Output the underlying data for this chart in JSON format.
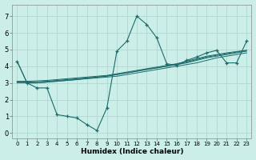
{
  "xlabel": "Humidex (Indice chaleur)",
  "bg_color": "#cceee8",
  "grid_color": "#b0d8d0",
  "line_color": "#1a6b6b",
  "xlim": [
    -0.5,
    23.5
  ],
  "ylim": [
    -0.3,
    7.7
  ],
  "xticks": [
    0,
    1,
    2,
    3,
    4,
    5,
    6,
    7,
    8,
    9,
    10,
    11,
    12,
    13,
    14,
    15,
    16,
    17,
    18,
    19,
    20,
    21,
    22,
    23
  ],
  "yticks": [
    0,
    1,
    2,
    3,
    4,
    5,
    6,
    7
  ],
  "main_series": [
    4.3,
    3.0,
    2.7,
    2.7,
    1.1,
    1.0,
    0.9,
    0.5,
    0.15,
    1.5,
    4.9,
    5.5,
    7.0,
    6.5,
    5.7,
    4.15,
    4.05,
    4.35,
    4.55,
    4.8,
    4.95,
    4.2,
    4.2,
    5.5
  ],
  "trend_lines": [
    [
      3.0,
      3.0,
      3.0,
      3.05,
      3.1,
      3.15,
      3.2,
      3.25,
      3.3,
      3.35,
      3.4,
      3.5,
      3.6,
      3.7,
      3.8,
      3.9,
      4.0,
      4.1,
      4.2,
      4.35,
      4.5,
      4.6,
      4.7,
      4.8
    ],
    [
      3.05,
      3.05,
      3.07,
      3.1,
      3.15,
      3.2,
      3.25,
      3.3,
      3.35,
      3.4,
      3.5,
      3.6,
      3.7,
      3.8,
      3.9,
      4.0,
      4.1,
      4.2,
      4.35,
      4.5,
      4.6,
      4.7,
      4.8,
      4.9
    ],
    [
      3.1,
      3.1,
      3.12,
      3.15,
      3.2,
      3.25,
      3.3,
      3.35,
      3.4,
      3.45,
      3.55,
      3.65,
      3.75,
      3.85,
      3.95,
      4.05,
      4.15,
      4.3,
      4.45,
      4.6,
      4.7,
      4.8,
      4.88,
      4.95
    ],
    [
      4.3,
      3.0,
      3.0,
      3.05,
      3.1,
      3.15,
      3.2,
      3.28,
      3.35,
      3.42,
      3.5,
      3.6,
      3.7,
      3.82,
      3.9,
      4.0,
      4.12,
      4.25,
      4.4,
      4.55,
      4.65,
      4.75,
      4.85,
      4.95
    ]
  ]
}
